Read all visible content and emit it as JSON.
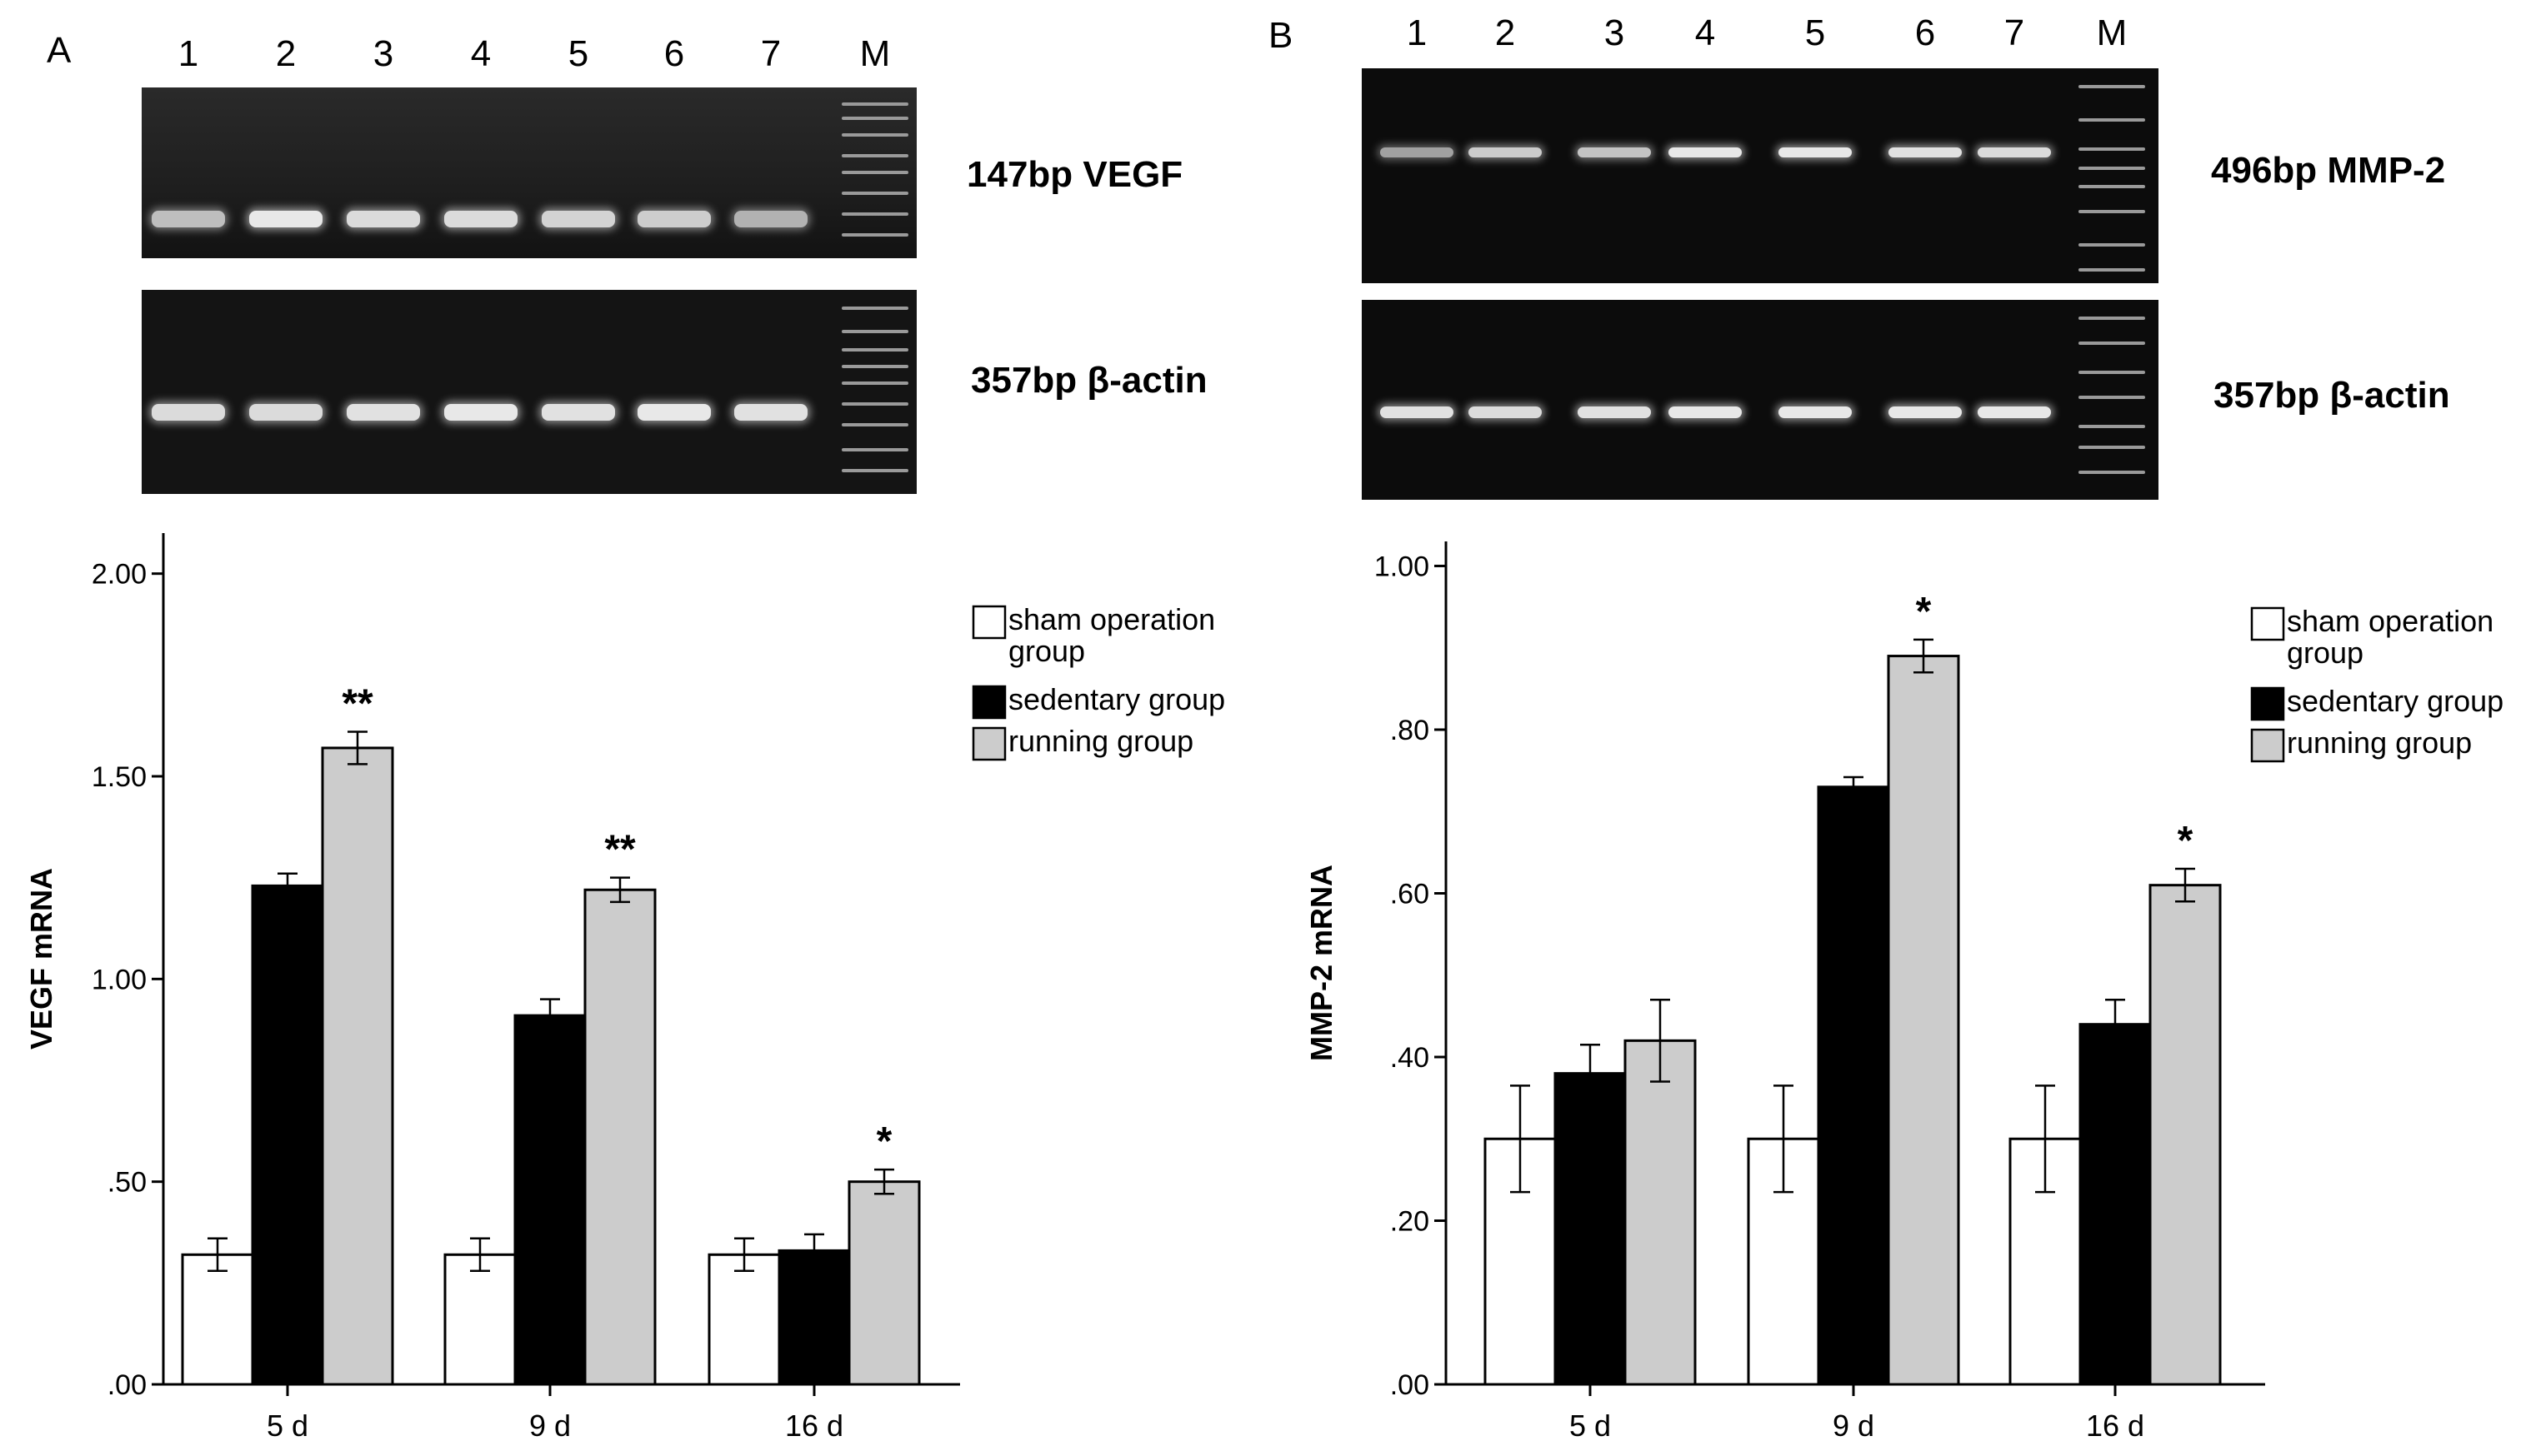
{
  "panels": [
    {
      "letter": "A",
      "lanes": [
        "1",
        "2",
        "3",
        "4",
        "5",
        "6",
        "7",
        "M"
      ],
      "gels": [
        {
          "label": "147bp VEGF",
          "band_intensity": [
            0.7,
            1.0,
            0.9,
            0.9,
            0.85,
            0.8,
            0.6
          ]
        },
        {
          "label": "357bp β-actin",
          "band_intensity": [
            0.9,
            0.9,
            0.95,
            1.0,
            0.95,
            1.0,
            0.95
          ]
        }
      ]
    },
    {
      "letter": "B",
      "lanes": [
        "1",
        "2",
        "3",
        "4",
        "5",
        "6",
        "7",
        "M"
      ],
      "gels": [
        {
          "label": "496bp MMP-2",
          "band_intensity": [
            0.5,
            0.8,
            0.75,
            1.0,
            1.0,
            0.95,
            0.9
          ]
        },
        {
          "label": "357bp β-actin",
          "band_intensity": [
            0.95,
            0.9,
            0.95,
            1.0,
            1.0,
            1.0,
            1.0
          ]
        }
      ]
    }
  ],
  "colors": {
    "sham": "#ffffff",
    "sedentary": "#000000",
    "running": "#cccccc",
    "outline": "#000000"
  },
  "chart_data": [
    {
      "type": "bar",
      "ylabel": "VEGF mRNA",
      "xlabel": "",
      "categories": [
        "5 d",
        "9 d",
        "16 d"
      ],
      "ylim": [
        0,
        2.1
      ],
      "yticks": [
        0,
        0.5,
        1.0,
        1.5,
        2.0
      ],
      "ytick_labels": [
        ".00",
        ".50",
        "1.00",
        "1.50",
        "2.00"
      ],
      "series": [
        {
          "name": "sham operation group",
          "values": [
            0.32,
            0.32,
            0.32
          ],
          "errors": [
            0.04,
            0.04,
            0.04
          ]
        },
        {
          "name": "sedentary group",
          "values": [
            1.23,
            0.91,
            0.33
          ],
          "errors": [
            0.03,
            0.04,
            0.04
          ]
        },
        {
          "name": "running group",
          "values": [
            1.57,
            1.22,
            0.5
          ],
          "errors": [
            0.04,
            0.03,
            0.03
          ]
        }
      ],
      "annotations": [
        {
          "category": "5 d",
          "series": "running group",
          "text": "**"
        },
        {
          "category": "9 d",
          "series": "running group",
          "text": "**"
        },
        {
          "category": "16 d",
          "series": "running group",
          "text": "*"
        }
      ],
      "legend": [
        "sham operation",
        "group",
        "sedentary group",
        "running group"
      ],
      "legend_position": "top-right",
      "grid": false
    },
    {
      "type": "bar",
      "ylabel": "MMP-2 mRNA",
      "xlabel": "",
      "categories": [
        "5 d",
        "9 d",
        "16 d"
      ],
      "ylim": [
        0,
        1.03
      ],
      "yticks": [
        0,
        0.2,
        0.4,
        0.6,
        0.8,
        1.0
      ],
      "ytick_labels": [
        ".00",
        ".20",
        ".40",
        ".60",
        ".80",
        "1.00"
      ],
      "series": [
        {
          "name": "sham operation group",
          "values": [
            0.3,
            0.3,
            0.3
          ],
          "errors": [
            0.065,
            0.065,
            0.065
          ]
        },
        {
          "name": "sedentary group",
          "values": [
            0.38,
            0.73,
            0.44
          ],
          "errors": [
            0.035,
            0.012,
            0.03
          ]
        },
        {
          "name": "running group",
          "values": [
            0.42,
            0.89,
            0.61
          ],
          "errors": [
            0.05,
            0.02,
            0.02
          ]
        }
      ],
      "annotations": [
        {
          "category": "9 d",
          "series": "running group",
          "text": "*"
        },
        {
          "category": "16 d",
          "series": "running group",
          "text": "*"
        }
      ],
      "legend": [
        "sham operation",
        "group",
        "sedentary group",
        "running group"
      ],
      "legend_position": "top-right",
      "grid": false
    }
  ]
}
